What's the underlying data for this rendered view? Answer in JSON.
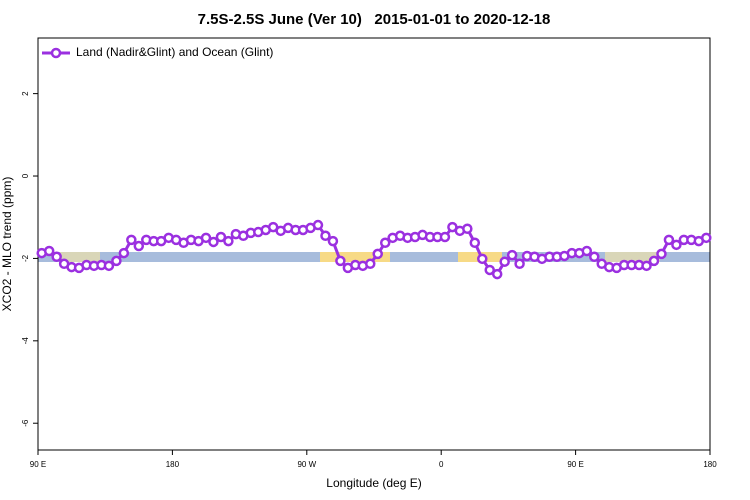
{
  "chart_data": {
    "type": "line",
    "title": "7.5S-2.5S June (Ver 10)   2015-01-01 to 2020-12-18",
    "x_label": "Longitude (deg E)",
    "y_label": "XCO2 - MLO trend (ppm)",
    "xlim": [
      90,
      540
    ],
    "xticks": [
      {
        "value": 90,
        "label": "90 E"
      },
      {
        "value": 180,
        "label": "180"
      },
      {
        "value": 270,
        "label": "90 W"
      },
      {
        "value": 360,
        "label": "0"
      },
      {
        "value": 450,
        "label": "90 E"
      },
      {
        "value": 540,
        "label": "180"
      }
    ],
    "ylim": [
      -6.65,
      3.35
    ],
    "yticks": [
      2,
      0,
      -2,
      -4,
      -6
    ],
    "legend": "top-left",
    "x": [
      92.5,
      97.5,
      102.5,
      107.5,
      112.5,
      117.5,
      122.5,
      127.5,
      132.5,
      137.5,
      142.5,
      147.5,
      152.5,
      157.5,
      162.5,
      167.5,
      172.5,
      177.5,
      182.5,
      187.5,
      192.5,
      197.5,
      202.5,
      207.5,
      212.5,
      217.5,
      222.5,
      227.5,
      232.5,
      237.5,
      242.5,
      247.5,
      252.5,
      257.5,
      262.5,
      267.5,
      272.5,
      277.5,
      282.5,
      287.5,
      292.5,
      297.5,
      302.5,
      307.5,
      312.5,
      317.5,
      322.5,
      327.5,
      332.5,
      337.5,
      342.5,
      347.5,
      352.5,
      357.5,
      362.5,
      367.5,
      372.5,
      377.5,
      382.5,
      387.5,
      392.5,
      397.5,
      402.5,
      407.5,
      412.5,
      417.5,
      422.5,
      427.5,
      432.5,
      437.5,
      442.5,
      447.5,
      452.5,
      457.5,
      462.5,
      467.5,
      472.5,
      477.5,
      482.5,
      487.5,
      492.5,
      497.5,
      502.5,
      507.5,
      512.5,
      517.5,
      522.5,
      527.5,
      532.5,
      537.5
    ],
    "series": [
      {
        "name": "Land (Nadir&Glint) and Ocean (Glint)",
        "color": "#9b30e0",
        "values": [
          -1.87,
          -1.82,
          -1.96,
          -2.13,
          -2.21,
          -2.23,
          -2.16,
          -2.18,
          -2.16,
          -2.18,
          -2.06,
          -1.87,
          -1.55,
          -1.7,
          -1.55,
          -1.58,
          -1.58,
          -1.5,
          -1.55,
          -1.62,
          -1.55,
          -1.58,
          -1.5,
          -1.6,
          -1.48,
          -1.58,
          -1.41,
          -1.45,
          -1.38,
          -1.36,
          -1.31,
          -1.24,
          -1.33,
          -1.26,
          -1.31,
          -1.31,
          -1.26,
          -1.19,
          -1.45,
          -1.58,
          -2.06,
          -2.23,
          -2.16,
          -2.18,
          -2.13,
          -1.89,
          -1.62,
          -1.5,
          -1.45,
          -1.5,
          -1.48,
          -1.43,
          -1.48,
          -1.48,
          -1.48,
          -1.24,
          -1.33,
          -1.28,
          -1.62,
          -2.01,
          -2.28,
          -2.38,
          -2.08,
          -1.92,
          -2.13,
          -1.94,
          -1.96,
          -2.01,
          -1.96,
          -1.96,
          -1.94,
          -1.87,
          -1.87,
          -1.82,
          -1.96,
          -2.13,
          -2.21,
          -2.23,
          -2.16,
          -2.16,
          -2.16,
          -2.18,
          -2.06,
          -1.89,
          -1.55,
          -1.67,
          -1.55,
          -1.55,
          -1.58,
          -1.5
        ]
      }
    ]
  }
}
